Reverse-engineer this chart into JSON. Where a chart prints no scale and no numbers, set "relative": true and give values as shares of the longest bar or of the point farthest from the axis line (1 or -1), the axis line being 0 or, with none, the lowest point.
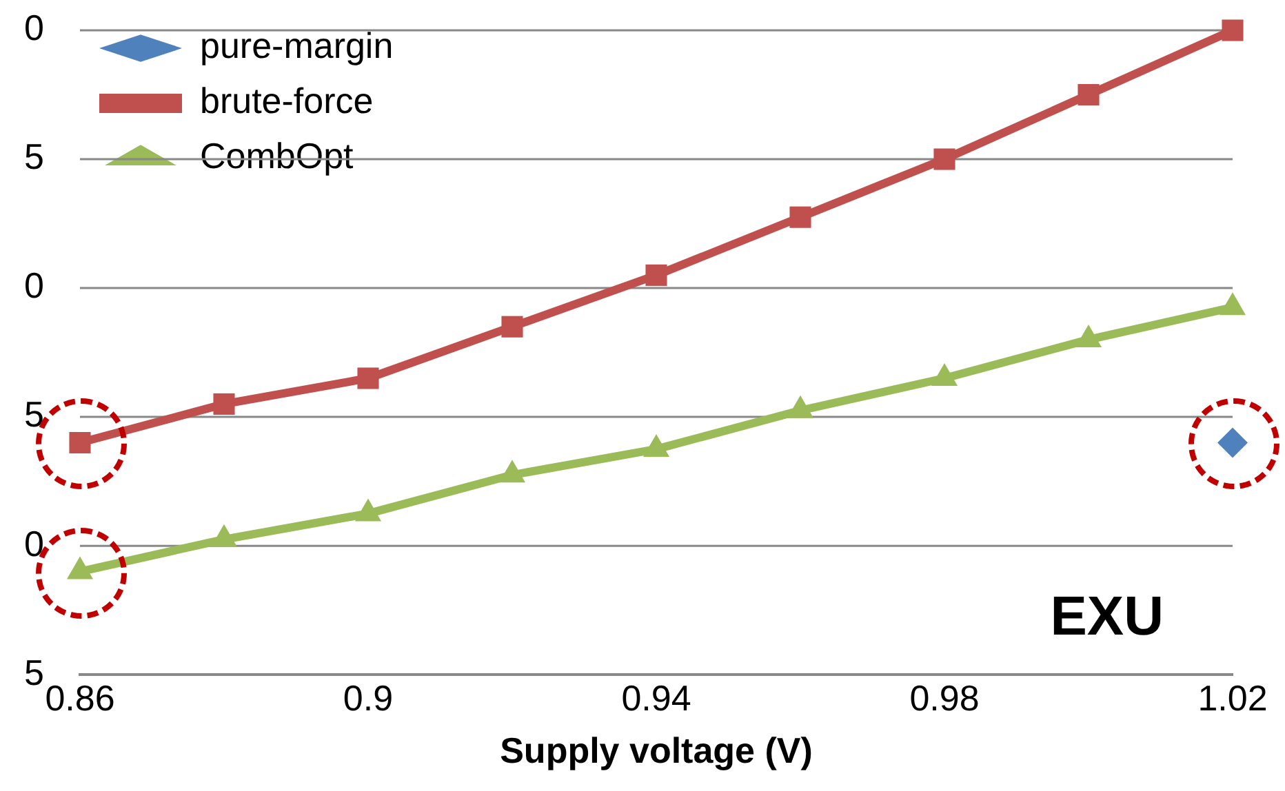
{
  "chart_data": {
    "type": "line",
    "xlabel": "Supply voltage (V)",
    "annotations": [
      "0",
      "5",
      "0",
      "5",
      "0",
      "5",
      "EXU"
    ],
    "x": [
      0.86,
      0.88,
      0.9,
      0.92,
      0.94,
      0.96,
      0.98,
      1.0,
      1.02
    ],
    "series": [
      {
        "name": "pure-margin",
        "color": "#4f81bd",
        "marker": "diamond",
        "x": [
          1.02
        ],
        "values": [
          0.36
        ]
      },
      {
        "name": "brute-force",
        "color": "#c0504d",
        "marker": "square",
        "values": [
          0.36,
          0.42,
          0.46,
          0.54,
          0.62,
          0.71,
          0.8,
          0.9,
          1
        ]
      },
      {
        "name": "CombOpt",
        "color": "#9bbb59",
        "marker": "triangle",
        "values": [
          0.16,
          0.21,
          0.25,
          0.31,
          0.35,
          0.41,
          0.46,
          0.52,
          0.57
        ]
      }
    ],
    "relative": true,
    "xlim": [
      0.86,
      1.02
    ],
    "xticks": [
      0.86,
      0.9,
      0.94,
      0.98,
      1.02
    ],
    "grid": "y",
    "legend": "top left",
    "line_style": "solid"
  }
}
